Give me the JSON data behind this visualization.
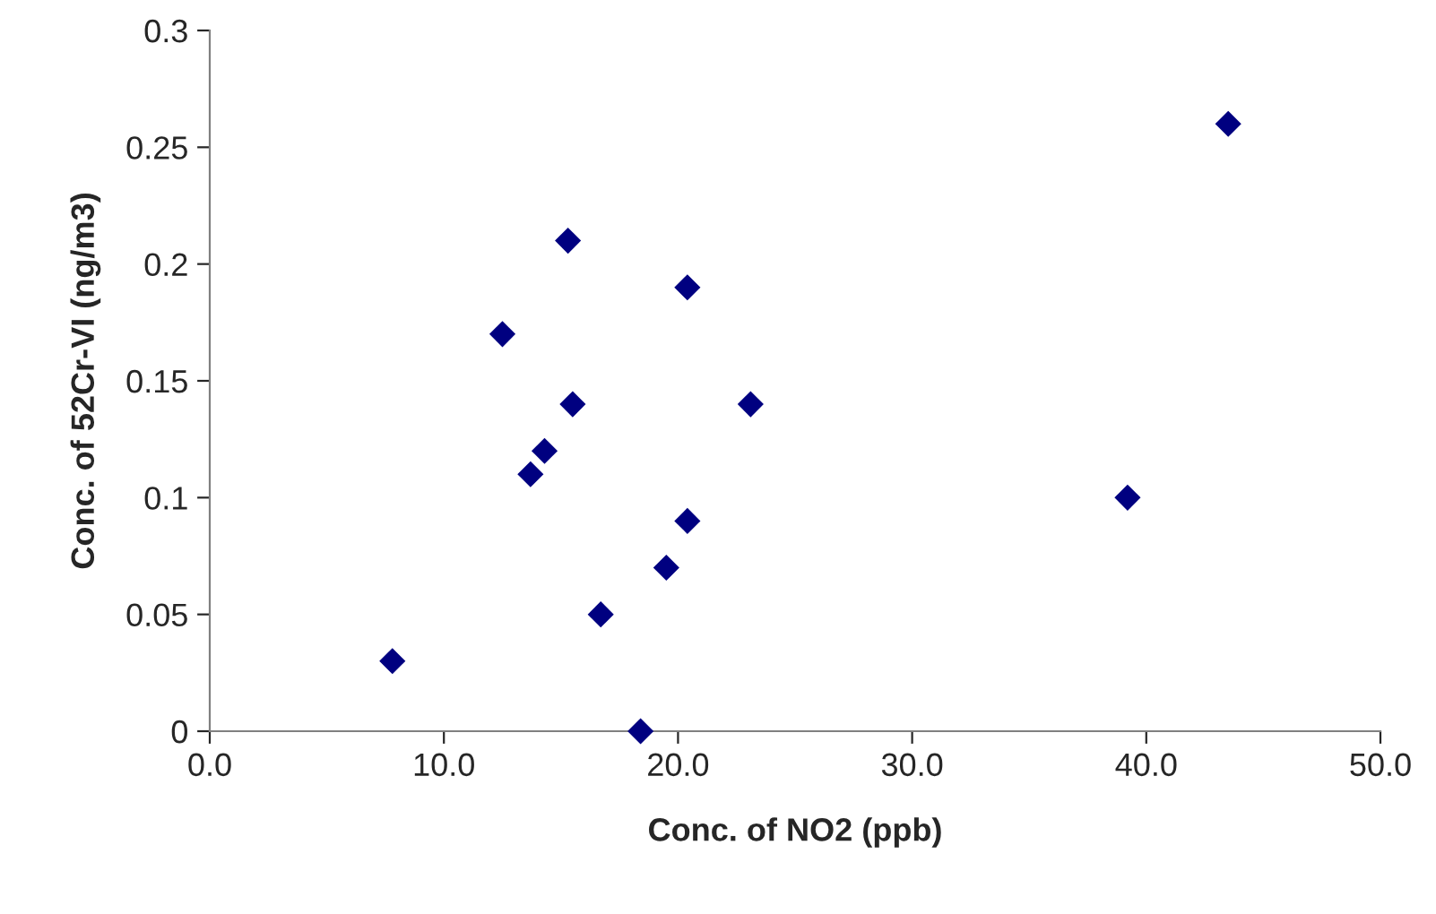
{
  "chart_data": {
    "type": "scatter",
    "xlabel": "Conc. of NO2 (ppb)",
    "ylabel": "Conc. of 52Cr-VI (ng/m3)",
    "x": [
      7.8,
      12.5,
      15.3,
      15.5,
      14.3,
      13.7,
      20.4,
      23.1,
      20.4,
      19.5,
      16.7,
      18.4,
      39.2,
      43.5
    ],
    "series": [
      {
        "color": "#000080",
        "values": [
          0.03,
          0.17,
          0.21,
          0.14,
          0.12,
          0.11,
          0.19,
          0.14,
          0.09,
          0.07,
          0.05,
          0,
          0.1,
          0.26
        ]
      }
    ],
    "marker": "diamond",
    "xlim": [
      0,
      50
    ],
    "xticks": [
      {
        "value": 0,
        "label": "0.0"
      },
      {
        "value": 10,
        "label": "10.0"
      },
      {
        "value": 20,
        "label": "20.0"
      },
      {
        "value": 30,
        "label": "30.0"
      },
      {
        "value": 40,
        "label": "40.0"
      },
      {
        "value": 50,
        "label": "50.0"
      }
    ],
    "ylim": [
      0,
      0.3
    ],
    "yticks": [
      0,
      0.05,
      0.1,
      0.15,
      0.2,
      0.25,
      0.3
    ],
    "grid": false
  }
}
